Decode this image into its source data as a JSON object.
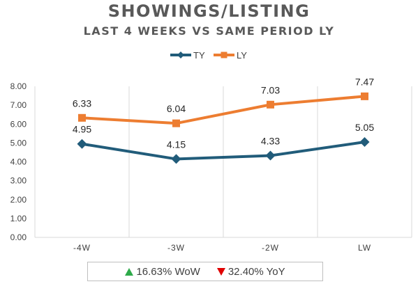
{
  "title": "SHOWINGS/LISTING",
  "subtitle": "LAST 4 WEEKS VS SAME PERIOD LY",
  "footer": {
    "wow_text": "16.63% WoW",
    "wow_direction": "up",
    "yoy_text": "32.40% YoY",
    "yoy_direction": "down",
    "up_color": "#2eaa4a",
    "down_color": "#e00000"
  },
  "chart_data": {
    "type": "line",
    "categories": [
      "-4W",
      "-3W",
      "-2W",
      "LW"
    ],
    "series": [
      {
        "name": "TY",
        "values": [
          4.95,
          4.15,
          4.33,
          5.05
        ],
        "color": "#215c7a",
        "marker": "diamond"
      },
      {
        "name": "LY",
        "values": [
          6.33,
          6.04,
          7.03,
          7.47
        ],
        "color": "#ed7d31",
        "marker": "square"
      }
    ],
    "data_labels": {
      "TY": [
        "4.95",
        "4.15",
        "4.33",
        "5.05"
      ],
      "LY": [
        "6.33",
        "6.04",
        "7.03",
        "7.47"
      ]
    },
    "y_tick_labels": [
      "0.00",
      "1.00",
      "2.00",
      "3.00",
      "4.00",
      "5.00",
      "6.00",
      "7.00",
      "8.00"
    ],
    "ylim": [
      0,
      8
    ],
    "grid": "vertical",
    "legend_placement": "top-center"
  }
}
